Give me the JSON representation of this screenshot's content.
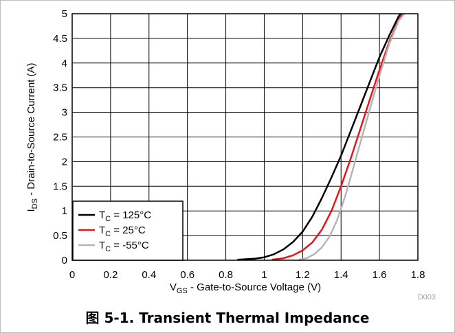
{
  "chart_data": {
    "type": "line",
    "title": "",
    "xlabel": {
      "main": "V",
      "sub": "GS",
      "rest": " - Gate-to-Source Voltage (V)"
    },
    "ylabel": {
      "main": "I",
      "sub": "DS",
      "rest": " - Drain-to-Source Current (A)"
    },
    "xlim": [
      0,
      1.8
    ],
    "ylim": [
      0,
      5
    ],
    "xticks": [
      "0",
      "0.2",
      "0.4",
      "0.6",
      "0.8",
      "1",
      "1.2",
      "1.4",
      "1.6",
      "1.8"
    ],
    "yticks": [
      "0",
      "0.5",
      "1",
      "1.5",
      "2",
      "2.5",
      "3",
      "3.5",
      "4",
      "4.5",
      "5"
    ],
    "grid": true,
    "legend": "bottom-left",
    "series": [
      {
        "name": {
          "main": "T",
          "sub": "C",
          "rest": " = 125°C"
        },
        "color": "#000000",
        "points": [
          [
            0.86,
            0.01
          ],
          [
            0.95,
            0.03
          ],
          [
            1.0,
            0.06
          ],
          [
            1.05,
            0.12
          ],
          [
            1.1,
            0.22
          ],
          [
            1.15,
            0.37
          ],
          [
            1.2,
            0.58
          ],
          [
            1.25,
            0.88
          ],
          [
            1.3,
            1.26
          ],
          [
            1.35,
            1.68
          ],
          [
            1.4,
            2.12
          ],
          [
            1.45,
            2.62
          ],
          [
            1.5,
            3.12
          ],
          [
            1.55,
            3.62
          ],
          [
            1.6,
            4.12
          ],
          [
            1.65,
            4.55
          ],
          [
            1.7,
            4.95
          ],
          [
            1.71,
            5.0
          ]
        ]
      },
      {
        "name": {
          "main": "T",
          "sub": "C",
          "rest": " = 25°C"
        },
        "color": "#e8141c",
        "points": [
          [
            1.04,
            0.01
          ],
          [
            1.1,
            0.04
          ],
          [
            1.15,
            0.1
          ],
          [
            1.2,
            0.2
          ],
          [
            1.25,
            0.36
          ],
          [
            1.3,
            0.62
          ],
          [
            1.35,
            1.0
          ],
          [
            1.4,
            1.5
          ],
          [
            1.45,
            2.06
          ],
          [
            1.5,
            2.66
          ],
          [
            1.55,
            3.26
          ],
          [
            1.6,
            3.86
          ],
          [
            1.65,
            4.42
          ],
          [
            1.7,
            4.88
          ],
          [
            1.72,
            5.0
          ]
        ]
      },
      {
        "name": {
          "main": "T",
          "sub": "C",
          "rest": " = -55°C"
        },
        "color": "#b5b5b5",
        "points": [
          [
            1.18,
            0.01
          ],
          [
            1.22,
            0.04
          ],
          [
            1.26,
            0.12
          ],
          [
            1.3,
            0.26
          ],
          [
            1.34,
            0.48
          ],
          [
            1.38,
            0.82
          ],
          [
            1.42,
            1.28
          ],
          [
            1.46,
            1.82
          ],
          [
            1.5,
            2.38
          ],
          [
            1.55,
            3.06
          ],
          [
            1.6,
            3.74
          ],
          [
            1.65,
            4.38
          ],
          [
            1.7,
            4.86
          ],
          [
            1.73,
            5.0
          ]
        ]
      }
    ]
  },
  "watermark": "D003",
  "caption": "图 5-1. Transient Thermal Impedance"
}
